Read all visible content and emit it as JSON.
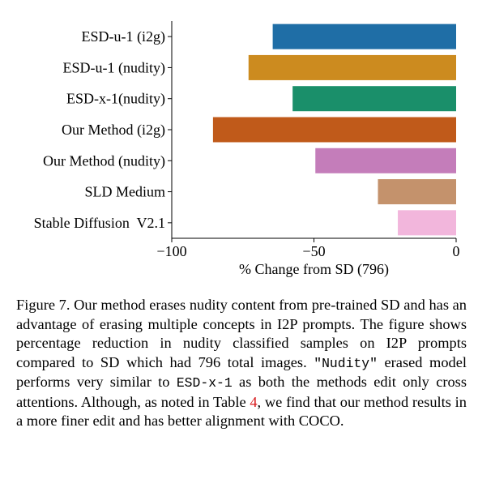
{
  "chart_data": {
    "type": "bar",
    "orientation": "horizontal",
    "categories": [
      "ESD-u-1 (i2g)",
      "ESD-u-1 (nudity)",
      "ESD-x-1(nudity)",
      "Our Method (i2g)",
      "Our Method (nudity)",
      "SLD Medium",
      "Stable Diffusion  V2.1"
    ],
    "values": [
      -64.5,
      -73,
      -57.5,
      -85.5,
      -49.5,
      -27.5,
      -20.5
    ],
    "colors": [
      "#1f6ea6",
      "#cc8b1f",
      "#1a8f6a",
      "#c05a1a",
      "#c47dba",
      "#c4926c",
      "#f2b6dc"
    ],
    "xlabel": "% Change from SD (796)",
    "xlim": [
      -100,
      0
    ],
    "xticks": [
      -100,
      -50,
      0
    ],
    "xtick_labels": [
      "−100",
      "−50",
      "0"
    ],
    "grid": false
  },
  "caption": {
    "label": "Figure 7.",
    "text1": " Our method erases nudity content from pre-trained SD and has an advantage of erasing multiple concepts in I2P prompts. The figure shows percentage reduction in nudity classified samples on I2P prompts compared to SD which had 796 total images. ",
    "code1": "\"Nudity\"",
    "text2": " erased model performs very similar to ",
    "code2": "ESD-x-1",
    "text3": " as both the methods edit only cross attentions. Although, as noted in Table ",
    "ref": "4",
    "text4": ", we find that our method results in a more finer edit and has better alignment with COCO."
  }
}
